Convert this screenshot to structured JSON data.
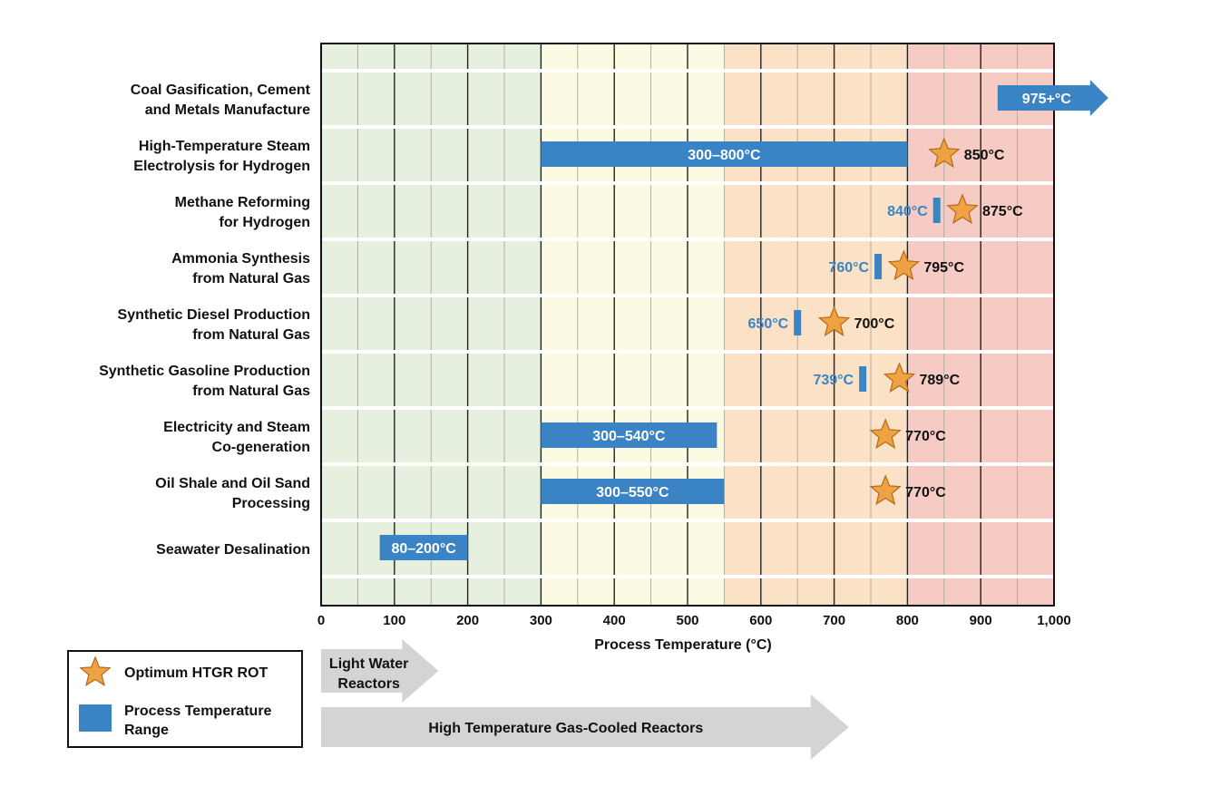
{
  "chart_data": {
    "type": "range-bar",
    "xlabel": "Process Temperature (°C)",
    "xlim": [
      0,
      1000
    ],
    "xticks": [
      0,
      100,
      200,
      300,
      400,
      500,
      600,
      700,
      800,
      900,
      1000
    ],
    "xtick_labels": [
      "0",
      "100",
      "200",
      "300",
      "400",
      "500",
      "600",
      "700",
      "800",
      "900",
      "1,000"
    ],
    "background_bands": [
      {
        "from": 0,
        "to": 300,
        "color": "#e5f0df"
      },
      {
        "from": 300,
        "to": 550,
        "color": "#fdfae3"
      },
      {
        "from": 550,
        "to": 800,
        "color": "#fbe2c6"
      },
      {
        "from": 800,
        "to": 1000,
        "color": "#f5cbc4"
      }
    ],
    "rows": [
      {
        "line1": "Coal Gasification, Cement",
        "line2": "and Metals Manufacture",
        "range": null,
        "range_label": null,
        "min_marker": null,
        "arrow": {
          "from": 975,
          "label": "975+°C"
        },
        "optimum": null
      },
      {
        "line1": "High-Temperature Steam",
        "line2": "Electrolysis for Hydrogen",
        "range": [
          300,
          800
        ],
        "range_label": "300–800°C",
        "min_marker": null,
        "arrow": null,
        "optimum": {
          "value": 850,
          "label": "850°C"
        }
      },
      {
        "line1": "Methane Reforming",
        "line2": "for Hydrogen",
        "range": null,
        "range_label": null,
        "min_marker": {
          "value": 840,
          "label": "840°C"
        },
        "arrow": null,
        "optimum": {
          "value": 875,
          "label": "875°C"
        }
      },
      {
        "line1": "Ammonia Synthesis",
        "line2": "from Natural Gas",
        "range": null,
        "range_label": null,
        "min_marker": {
          "value": 760,
          "label": "760°C"
        },
        "arrow": null,
        "optimum": {
          "value": 795,
          "label": "795°C"
        }
      },
      {
        "line1": "Synthetic Diesel Production",
        "line2": "from Natural Gas",
        "range": null,
        "range_label": null,
        "min_marker": {
          "value": 650,
          "label": "650°C"
        },
        "arrow": null,
        "optimum": {
          "value": 700,
          "label": "700°C"
        }
      },
      {
        "line1": "Synthetic Gasoline Production",
        "line2": "from Natural Gas",
        "range": null,
        "range_label": null,
        "min_marker": {
          "value": 739,
          "label": "739°C"
        },
        "arrow": null,
        "optimum": {
          "value": 789,
          "label": "789°C"
        }
      },
      {
        "line1": "Electricity and Steam",
        "line2": "Co-generation",
        "range": [
          300,
          540
        ],
        "range_label": "300–540°C",
        "min_marker": null,
        "arrow": null,
        "optimum": {
          "value": 770,
          "label": "770°C"
        }
      },
      {
        "line1": "Oil Shale and Oil Sand",
        "line2": "Processing",
        "range": [
          300,
          550
        ],
        "range_label": "300–550°C",
        "min_marker": null,
        "arrow": null,
        "optimum": {
          "value": 770,
          "label": "770°C"
        }
      },
      {
        "line1": "Seawater Desalination",
        "line2": "",
        "range": [
          80,
          200
        ],
        "range_label": "80–200°C",
        "min_marker": null,
        "arrow": null,
        "optimum": null
      }
    ],
    "legend": [
      {
        "symbol": "star",
        "label_line1": "Optimum HTGR ROT",
        "label_line2": ""
      },
      {
        "symbol": "bar",
        "label_line1": "Process Temperature",
        "label_line2": "Range"
      }
    ],
    "reactor_arrows": [
      {
        "from": 0,
        "to": 160,
        "line1": "Light Water",
        "line2": "Reactors"
      },
      {
        "from": 0,
        "to": 720,
        "line1": "High Temperature Gas-Cooled Reactors",
        "line2": ""
      }
    ],
    "colors": {
      "bar": "#3a84c5",
      "star_fill": "#f0a142",
      "star_stroke": "#b36b1a",
      "reactor_arrow": "#d4d4d4",
      "row_separator": "#ffffff"
    }
  }
}
